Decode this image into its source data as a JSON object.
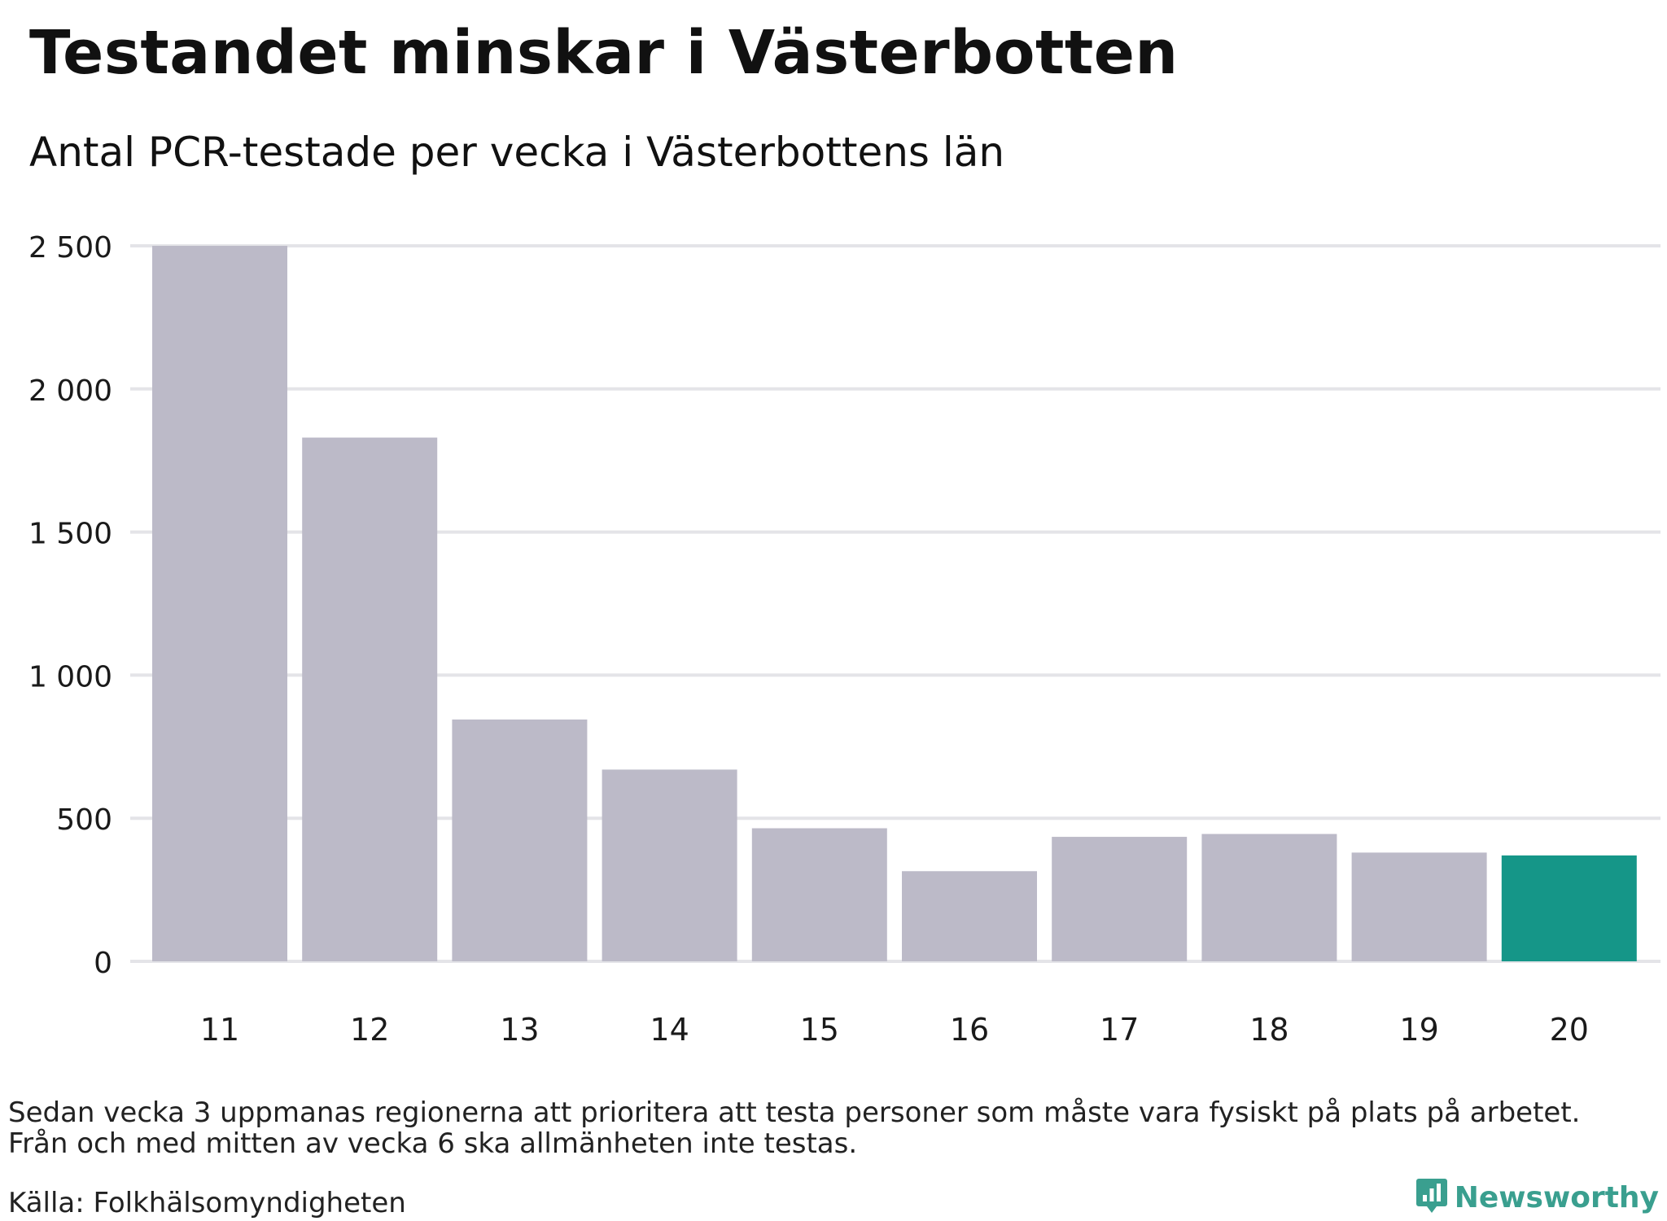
{
  "header": {
    "title": "Testandet minskar i Västerbotten",
    "subtitle": "Antal PCR-testade per vecka i Västerbottens län"
  },
  "footer": {
    "note_line1": "Sedan vecka 3 uppmanas regionerna att prioritera att testa personer som måste vara fysiskt på plats på arbetet.",
    "note_line2": "Från och med mitten av vecka 6 ska allmänheten inte testas.",
    "source": "Källa: Folkhälsomyndigheten",
    "brand": "Newsworthy",
    "brand_icon": "bar-chart-speech-bubble-icon"
  },
  "colors": {
    "bar_default": "#bcbac8",
    "bar_highlight": "#159688",
    "grid": "#e4e4e8",
    "brand": "#3a9f8f"
  },
  "chart_data": {
    "type": "bar",
    "title": "Testandet minskar i Västerbotten",
    "subtitle": "Antal PCR-testade per vecka i Västerbottens län",
    "xlabel": "",
    "ylabel": "",
    "categories": [
      "11",
      "12",
      "13",
      "14",
      "15",
      "16",
      "17",
      "18",
      "19",
      "20"
    ],
    "values": [
      2500,
      1830,
      845,
      670,
      465,
      315,
      435,
      445,
      380,
      370
    ],
    "highlight_category": "20",
    "ylim": [
      0,
      2500
    ],
    "yticks": [
      0,
      500,
      1000,
      1500,
      2000,
      2500
    ],
    "ytick_labels": [
      "0",
      "500",
      "1 000",
      "1 500",
      "2 000",
      "2 500"
    ],
    "grid": true,
    "legend": "none"
  }
}
